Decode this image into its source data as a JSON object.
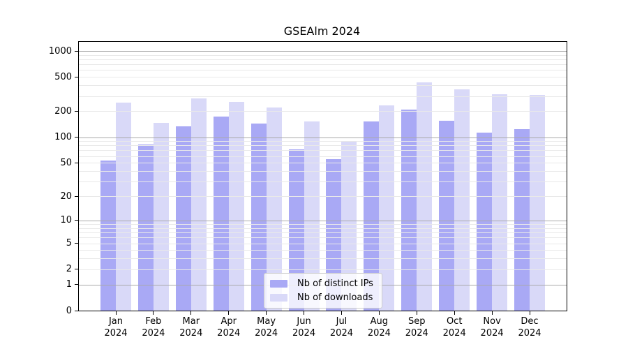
{
  "chart_data": {
    "type": "bar",
    "title": "GSEAlm 2024",
    "months": [
      "Jan",
      "Feb",
      "Mar",
      "Apr",
      "May",
      "Jun",
      "Jul",
      "Aug",
      "Sep",
      "Oct",
      "Nov",
      "Dec"
    ],
    "year": "2024",
    "series": [
      {
        "key": "distinct-ips",
        "name": "Nb of distinct IPs",
        "color": "#a9a9f5",
        "values": [
          53,
          82,
          133,
          173,
          144,
          72,
          55,
          152,
          208,
          155,
          114,
          125
        ]
      },
      {
        "key": "downloads",
        "name": "Nb of downloads",
        "color": "#d9d9f8",
        "values": [
          251,
          147,
          283,
          255,
          222,
          152,
          91,
          232,
          432,
          359,
          317,
          307
        ]
      }
    ],
    "yscale": "log10(1+x)",
    "ylim": [
      0,
      1300
    ],
    "yticks": [
      0,
      1,
      2,
      5,
      10,
      20,
      50,
      100,
      200,
      500,
      1000
    ],
    "grid_major": [
      1,
      10,
      100,
      1000
    ],
    "grid": true,
    "legend_position": "inside-bottom-center",
    "colors": {
      "grid_major": "#a9a9a9",
      "grid_minor": "#e9e9e9",
      "axis": "#000000",
      "background": "#ffffff"
    }
  }
}
